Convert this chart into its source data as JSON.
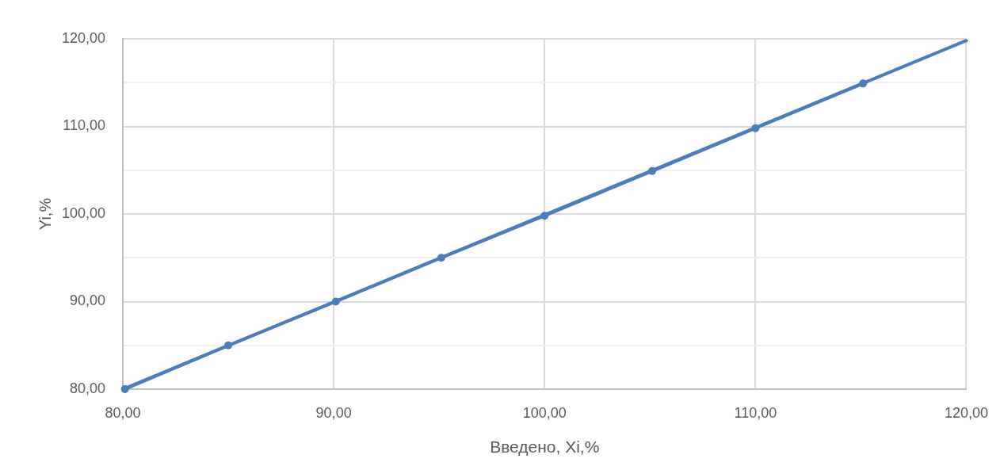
{
  "chart_data": {
    "type": "line",
    "xlabel": "Введено, Xi,%",
    "ylabel": "Yi,%",
    "xlim": [
      80,
      120
    ],
    "xticks": [
      {
        "value": 80,
        "label": "80,00"
      },
      {
        "value": 90,
        "label": "90,00"
      },
      {
        "value": 100,
        "label": "100,00"
      },
      {
        "value": 110,
        "label": "110,00"
      },
      {
        "value": 120,
        "label": "120,00"
      }
    ],
    "ylim": [
      80,
      120
    ],
    "yticks": [
      {
        "value": 80,
        "label": "80,00"
      },
      {
        "value": 85,
        "label": null
      },
      {
        "value": 90,
        "label": "90,00"
      },
      {
        "value": 95,
        "label": null
      },
      {
        "value": 100,
        "label": "100,00"
      },
      {
        "value": 105,
        "label": null
      },
      {
        "value": 110,
        "label": "110,00"
      },
      {
        "value": 115,
        "label": null
      },
      {
        "value": 120,
        "label": "120,00"
      }
    ],
    "grid": true,
    "series": [
      {
        "color": "#4a7ebb",
        "marker": "circle",
        "line_style": "solid",
        "x": [
          80.1,
          85.0,
          90.1,
          95.1,
          100.0,
          105.1,
          110.0,
          115.1
        ],
        "values": [
          80.0,
          85.0,
          90.0,
          95.0,
          99.8,
          104.9,
          109.8,
          114.9
        ]
      },
      {
        "color": "#4a7ebb",
        "marker": "none",
        "line_style": "solid",
        "x": [
          80,
          120
        ],
        "values": [
          80.0,
          119.8
        ]
      }
    ]
  }
}
